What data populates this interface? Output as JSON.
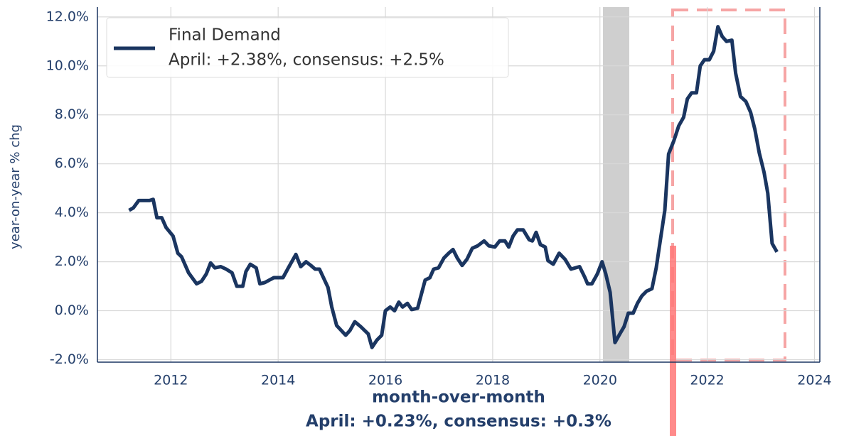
{
  "chart_data": {
    "type": "line",
    "y_label": "year-on-year % chg",
    "x_label": "month-over-month",
    "x_note": "April:  +0.23%, consensus: +0.3%",
    "legend_note": "April:  +2.38%, consensus: +2.5%",
    "legend_position": "upper left",
    "grid": true,
    "xlim": [
      2010.63,
      2024.1
    ],
    "ylim": [
      -2.1,
      12.4
    ],
    "xticks": [
      2012,
      2014,
      2016,
      2018,
      2020,
      2022,
      2024
    ],
    "yticks": [
      {
        "value": -2,
        "label": "-2.0%"
      },
      {
        "value": 0,
        "label": "0.0%"
      },
      {
        "value": 2,
        "label": "2.0%"
      },
      {
        "value": 4,
        "label": "4.0%"
      },
      {
        "value": 6,
        "label": "6.0%"
      },
      {
        "value": 8,
        "label": "8.0%"
      },
      {
        "value": 10,
        "label": "10.0%"
      },
      {
        "value": 12,
        "label": "12.0%"
      }
    ],
    "x": [
      2011.22,
      2011.3,
      2011.4,
      2011.6,
      2011.67,
      2011.74,
      2011.83,
      2011.91,
      2012.04,
      2012.13,
      2012.2,
      2012.33,
      2012.48,
      2012.57,
      2012.66,
      2012.74,
      2012.82,
      2012.93,
      2013.03,
      2013.14,
      2013.23,
      2013.34,
      2013.4,
      2013.48,
      2013.59,
      2013.66,
      2013.75,
      2013.92,
      2014.09,
      2014.19,
      2014.33,
      2014.42,
      2014.52,
      2014.61,
      2014.69,
      2014.77,
      2014.93,
      2015.0,
      2015.09,
      2015.26,
      2015.34,
      2015.43,
      2015.54,
      2015.68,
      2015.75,
      2015.84,
      2015.93,
      2016.0,
      2016.09,
      2016.17,
      2016.25,
      2016.32,
      2016.41,
      2016.49,
      2016.6,
      2016.74,
      2016.83,
      2016.9,
      2016.99,
      2017.09,
      2017.18,
      2017.26,
      2017.34,
      2017.43,
      2017.52,
      2017.62,
      2017.72,
      2017.84,
      2017.93,
      2018.04,
      2018.13,
      2018.23,
      2018.3,
      2018.38,
      2018.46,
      2018.57,
      2018.68,
      2018.74,
      2018.81,
      2018.89,
      2018.98,
      2019.03,
      2019.13,
      2019.24,
      2019.35,
      2019.46,
      2019.62,
      2019.71,
      2019.77,
      2019.85,
      2019.95,
      2020.04,
      2020.11,
      2020.19,
      2020.28,
      2020.37,
      2020.45,
      2020.53,
      2020.62,
      2020.7,
      2020.78,
      2020.87,
      2020.97,
      2021.05,
      2021.11,
      2021.21,
      2021.28,
      2021.38,
      2021.47,
      2021.56,
      2021.63,
      2021.71,
      2021.8,
      2021.87,
      2021.95,
      2022.04,
      2022.12,
      2022.2,
      2022.28,
      2022.36,
      2022.46,
      2022.53,
      2022.62,
      2022.72,
      2022.81,
      2022.89,
      2022.97,
      2023.06,
      2023.13,
      2023.21,
      2023.3
    ],
    "series": [
      {
        "name": "Final Demand",
        "color": "#1a3560",
        "values": [
          4.1,
          4.2,
          4.5,
          4.5,
          4.55,
          3.8,
          3.8,
          3.4,
          3.05,
          2.35,
          2.2,
          1.55,
          1.1,
          1.2,
          1.5,
          1.95,
          1.75,
          1.8,
          1.7,
          1.55,
          1.0,
          1.0,
          1.6,
          1.9,
          1.75,
          1.1,
          1.15,
          1.35,
          1.35,
          1.75,
          2.3,
          1.8,
          2.0,
          1.85,
          1.7,
          1.7,
          0.95,
          0.15,
          -0.6,
          -1.0,
          -0.8,
          -0.45,
          -0.65,
          -0.95,
          -1.5,
          -1.2,
          -1.0,
          0.0,
          0.15,
          0.0,
          0.35,
          0.15,
          0.3,
          0.05,
          0.1,
          1.25,
          1.35,
          1.7,
          1.75,
          2.15,
          2.35,
          2.5,
          2.15,
          1.85,
          2.1,
          2.55,
          2.65,
          2.85,
          2.65,
          2.6,
          2.85,
          2.85,
          2.6,
          3.05,
          3.3,
          3.3,
          2.9,
          2.85,
          3.2,
          2.7,
          2.6,
          2.05,
          1.9,
          2.35,
          2.1,
          1.7,
          1.8,
          1.4,
          1.1,
          1.1,
          1.5,
          2.0,
          1.5,
          0.75,
          -1.3,
          -0.95,
          -0.65,
          -0.1,
          -0.1,
          0.3,
          0.6,
          0.8,
          0.9,
          1.75,
          2.65,
          4.1,
          6.4,
          6.95,
          7.55,
          7.9,
          8.65,
          8.9,
          8.9,
          10.0,
          10.25,
          10.25,
          10.6,
          11.6,
          11.2,
          11.0,
          11.05,
          9.7,
          8.75,
          8.55,
          8.1,
          7.4,
          6.45,
          5.65,
          4.8,
          2.75,
          2.4
        ]
      }
    ]
  }
}
